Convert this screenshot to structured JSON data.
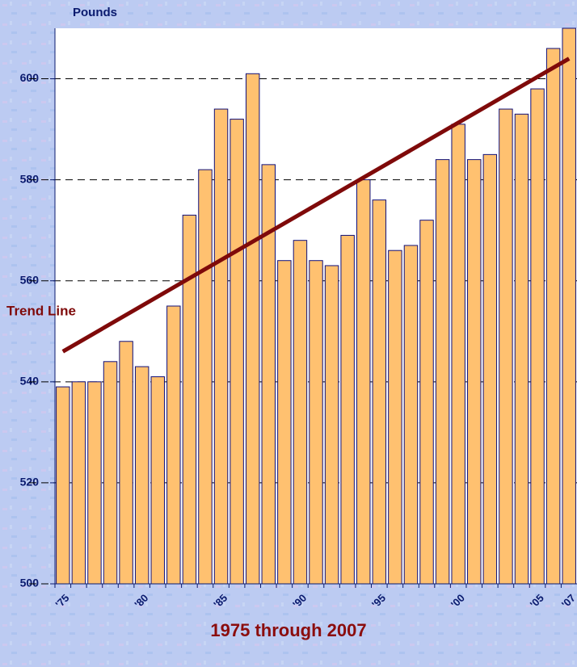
{
  "chart_data": {
    "type": "bar",
    "title": "1975 through 2007",
    "y_label": "Pounds",
    "categories": [
      "'75",
      null,
      null,
      null,
      null,
      "'80",
      null,
      null,
      null,
      null,
      "'85",
      null,
      null,
      null,
      null,
      "'90",
      null,
      null,
      null,
      null,
      "'95",
      null,
      null,
      null,
      null,
      "'00",
      null,
      null,
      null,
      null,
      "'05",
      null,
      "'07"
    ],
    "values": [
      539,
      540,
      540,
      544,
      548,
      543,
      541,
      555,
      573,
      582,
      594,
      592,
      601,
      583,
      564,
      568,
      564,
      563,
      569,
      580,
      576,
      566,
      567,
      572,
      584,
      591,
      584,
      585,
      594,
      593,
      598,
      606,
      610
    ],
    "color": "#ffc170",
    "ylim": [
      500,
      610
    ],
    "yticks": [
      500,
      520,
      540,
      560,
      580,
      600
    ],
    "grid": true,
    "trend": {
      "label": "Trend Line",
      "values": [
        546,
        604
      ],
      "color": "#7f0a0a"
    }
  }
}
